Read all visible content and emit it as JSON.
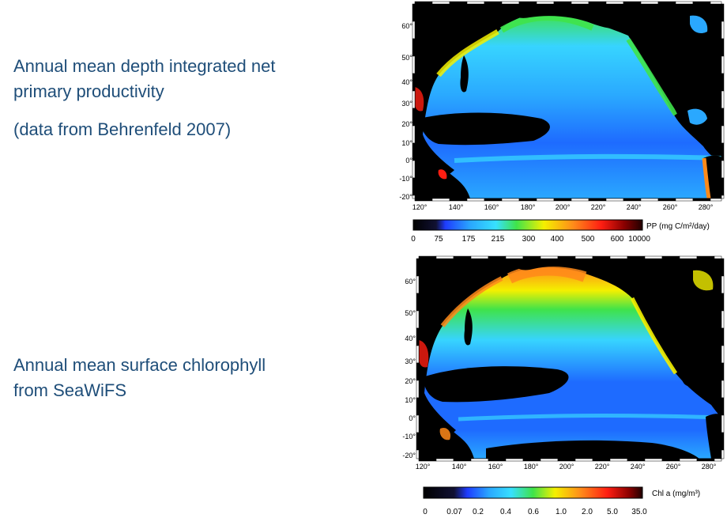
{
  "captions": {
    "pp_title": "Annual mean depth integrated net primary productivity",
    "pp_source": "(data from Behrenfeld 2007)",
    "chl_title": "Annual mean surface chlorophyll from SeaWiFS"
  },
  "maps": {
    "pp": {
      "lat_ticks": [
        "60°",
        "50°",
        "40°",
        "30°",
        "20°",
        "10°",
        "0°",
        "-10°",
        "-20°"
      ],
      "lon_ticks": [
        "120°",
        "140°",
        "160°",
        "180°",
        "200°",
        "220°",
        "240°",
        "260°",
        "280°"
      ],
      "colorbar_title": "PP (mg C/m²/day)",
      "colorbar_ticks": [
        "0",
        "75",
        "175",
        "215",
        "300",
        "400",
        "500",
        "600",
        "10000"
      ]
    },
    "chl": {
      "lat_ticks": [
        "60°",
        "50°",
        "40°",
        "30°",
        "20°",
        "10°",
        "0°",
        "-10°",
        "-20°"
      ],
      "lon_ticks": [
        "120°",
        "140°",
        "160°",
        "180°",
        "200°",
        "220°",
        "240°",
        "260°",
        "280°"
      ],
      "colorbar_title": "Chl a (mg/m³)",
      "colorbar_ticks": [
        "0",
        "0.07",
        "0.2",
        "0.4",
        "0.6",
        "1.0",
        "2.0",
        "5.0",
        "35.0"
      ]
    }
  },
  "colors": {
    "caption_text": "#1f4e79",
    "land": "#000000",
    "low": "#1e6bff",
    "mid": "#37d4ff",
    "green": "#3fe34a",
    "yellow": "#f4f000",
    "orange": "#ff8a1a",
    "red": "#ff1e12"
  }
}
